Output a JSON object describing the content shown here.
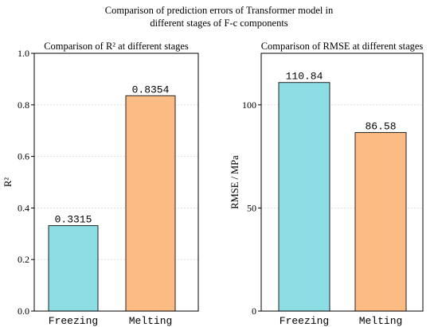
{
  "figure": {
    "title_line1": "Comparison of prediction errors of Transformer model in",
    "title_line2": "different stages of F-c components"
  },
  "chart_data": [
    {
      "type": "bar",
      "title": "Comparison of R² at different stages",
      "xlabel": "",
      "ylabel": "R²",
      "categories": [
        "Freezing",
        "Melting"
      ],
      "values": [
        0.3315,
        0.8354
      ],
      "labels": [
        "0.3315",
        "0.8354"
      ],
      "ylim": [
        0,
        1.0
      ],
      "yticks": [
        0.0,
        0.2,
        0.4,
        0.6,
        0.8,
        1.0
      ],
      "ytick_labels": [
        "0.0",
        "0.2",
        "0.4",
        "0.6",
        "0.8",
        "1.0"
      ],
      "grid": true,
      "colors": [
        "#8ddde5",
        "#fdbb84"
      ]
    },
    {
      "type": "bar",
      "title": "Comparison of RMSE at different stages",
      "xlabel": "",
      "ylabel": "RMSE / MPa",
      "categories": [
        "Freezing",
        "Melting"
      ],
      "values": [
        110.84,
        86.58
      ],
      "labels": [
        "110.84",
        "86.58"
      ],
      "ylim": [
        0,
        125
      ],
      "yticks": [
        0,
        50,
        100
      ],
      "ytick_labels": [
        "0",
        "50",
        "100"
      ],
      "grid": true,
      "colors": [
        "#8ddde5",
        "#fdbb84"
      ]
    }
  ]
}
